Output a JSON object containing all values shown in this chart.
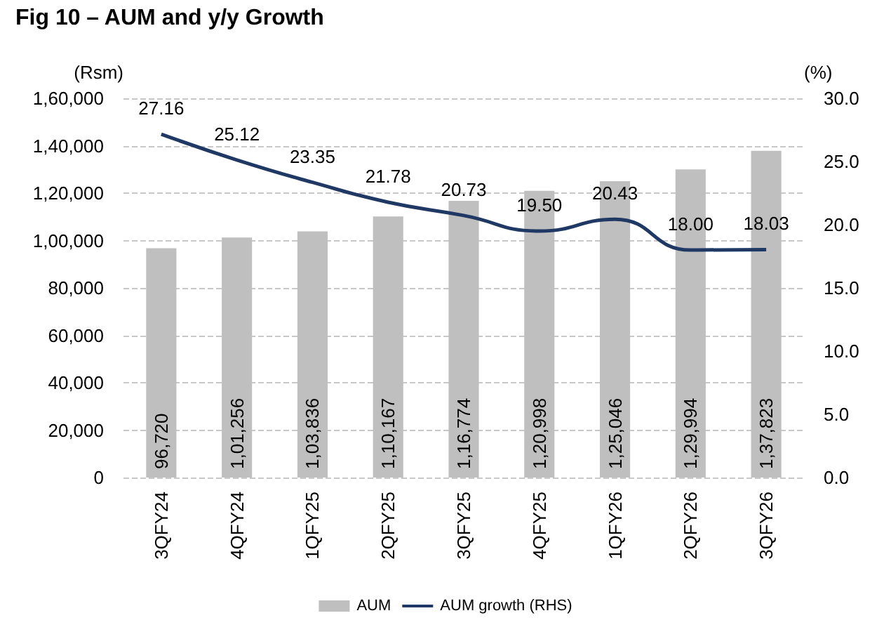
{
  "chart_data": {
    "type": "bar",
    "title": "Fig 10 – AUM and y/y Growth",
    "ylabel": "(Rsm)",
    "y2label": "(%)",
    "categories": [
      "3QFY24",
      "4QFY24",
      "1QFY25",
      "2QFY25",
      "3QFY25",
      "4QFY25",
      "1QFY26",
      "2QFY26",
      "3QFY26"
    ],
    "series": [
      {
        "name": "AUM",
        "color": "#bfbfbf",
        "values": [
          96720,
          101256,
          103836,
          110167,
          116774,
          120998,
          125046,
          129994,
          137823
        ],
        "value_labels": [
          "96,720",
          "1,01,256",
          "1,03,836",
          "1,10,167",
          "1,16,774",
          "1,20,998",
          "1,25,046",
          "1,29,994",
          "1,37,823"
        ]
      },
      {
        "name": "AUM growth (RHS)",
        "type": "line",
        "axis": "y2",
        "color": "#1f3864",
        "values": [
          27.16,
          25.12,
          23.35,
          21.78,
          20.73,
          19.5,
          20.43,
          18.0,
          18.03
        ],
        "value_labels": [
          "27.16",
          "25.12",
          "23.35",
          "21.78",
          "20.73",
          "19.50",
          "20.43",
          "18.00",
          "18.03"
        ]
      }
    ],
    "ylim": [
      0,
      160000
    ],
    "yticks": [
      {
        "value": 0,
        "label": "0"
      },
      {
        "value": 20000,
        "label": "20,000"
      },
      {
        "value": 40000,
        "label": "40,000"
      },
      {
        "value": 60000,
        "label": "60,000"
      },
      {
        "value": 80000,
        "label": "80,000"
      },
      {
        "value": 100000,
        "label": "1,00,000"
      },
      {
        "value": 120000,
        "label": "1,20,000"
      },
      {
        "value": 140000,
        "label": "1,40,000"
      },
      {
        "value": 160000,
        "label": "1,60,000"
      }
    ],
    "y2lim": [
      0,
      30
    ],
    "y2ticks": [
      {
        "value": 0,
        "label": "0.0"
      },
      {
        "value": 5,
        "label": "5.0"
      },
      {
        "value": 10,
        "label": "10.0"
      },
      {
        "value": 15,
        "label": "15.0"
      },
      {
        "value": 20,
        "label": "20.0"
      },
      {
        "value": 25,
        "label": "25.0"
      },
      {
        "value": 30,
        "label": "30.0"
      }
    ],
    "grid": "y",
    "legend": "bottom",
    "marker": "none",
    "line_style": "solid"
  }
}
